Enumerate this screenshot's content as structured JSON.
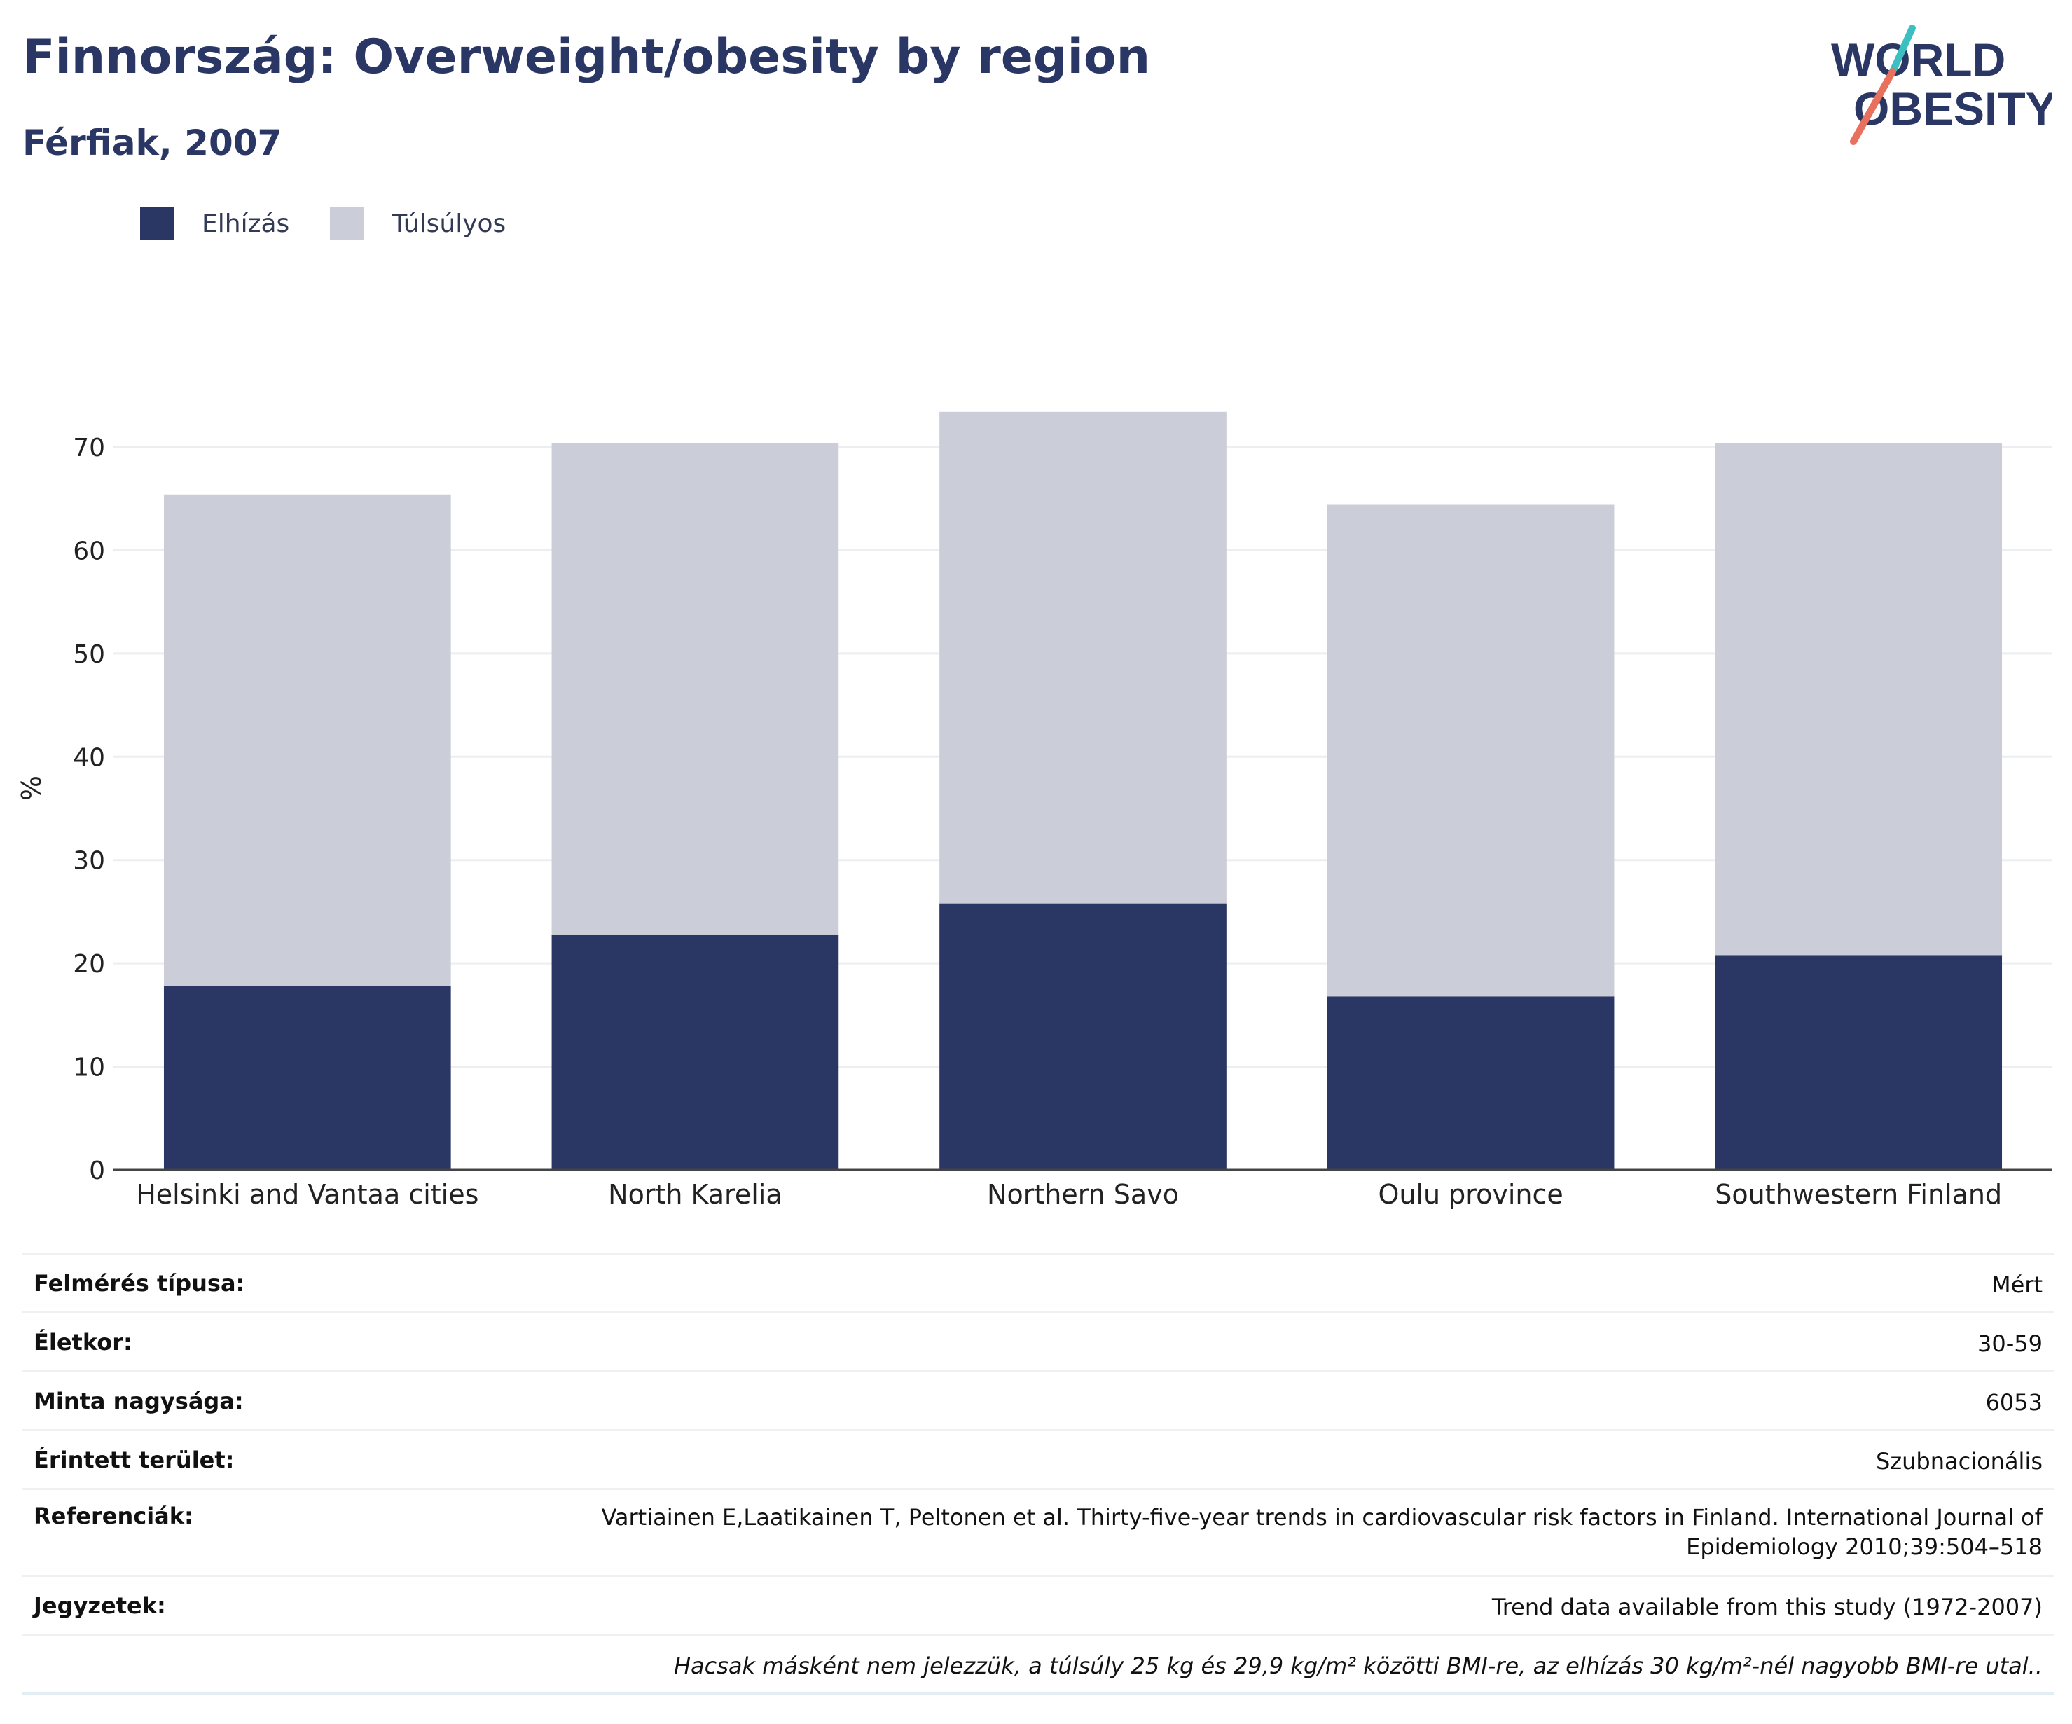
{
  "header": {
    "title": "Finnország: Overweight/obesity by region",
    "subtitle": "Férfiak, 2007"
  },
  "logo": {
    "line1": "WORLD",
    "line2": "OBESITY",
    "accent_teal": "#3cbfc1",
    "accent_coral": "#e8705d"
  },
  "legend": [
    {
      "label": "Elhízás",
      "color": "#2a3663"
    },
    {
      "label": "Túlsúlyos",
      "color": "#cbcdd8"
    }
  ],
  "chart_data": {
    "type": "bar",
    "stacked": true,
    "categories": [
      "Helsinki and Vantaa cities",
      "North Karelia",
      "Northern Savo",
      "Oulu province",
      "Southwestern Finland"
    ],
    "series": [
      {
        "name": "Elhízás",
        "color": "#2a3663",
        "values": [
          17.8,
          22.8,
          25.8,
          16.8,
          20.8
        ]
      },
      {
        "name": "Túlsúlyos",
        "color": "#cbcdd8",
        "values": [
          47.6,
          47.6,
          47.6,
          47.6,
          49.6
        ]
      }
    ],
    "ylabel": "%",
    "yticks": [
      0,
      10,
      20,
      30,
      40,
      50,
      60,
      70
    ],
    "ylim": [
      0,
      78
    ],
    "grid": true
  },
  "info": [
    {
      "label": "Felmérés típusa:",
      "value": "Mért"
    },
    {
      "label": "Életkor:",
      "value": "30-59"
    },
    {
      "label": "Minta nagysága:",
      "value": "6053"
    },
    {
      "label": "Érintett terület:",
      "value": "Szubnacionális"
    },
    {
      "label": "Referenciák:",
      "value": "Vartiainen E,Laatikainen T, Peltonen et al. Thirty-five-year trends in cardiovascular risk factors in Finland. International Journal of Epidemiology 2010;39:504–518"
    },
    {
      "label": "Jegyzetek:",
      "value": "Trend data available from this study (1972-2007)"
    }
  ],
  "footnote": "Hacsak másként nem jelezzük, a túlsúly 25 kg és 29,9 kg/m² közötti BMI-re, az elhízás 30 kg/m²-nél nagyobb BMI-re utal.."
}
